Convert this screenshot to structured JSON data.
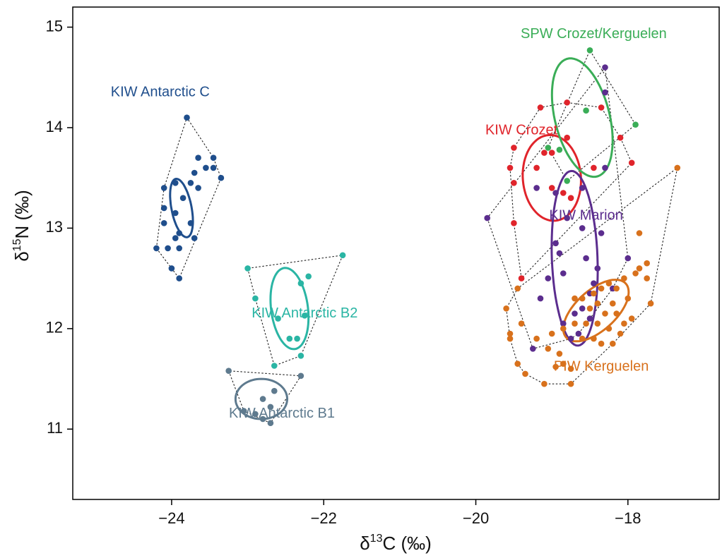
{
  "chart_data": {
    "type": "scatter",
    "title": "",
    "xlabel": "δ¹³C (‰)",
    "ylabel": "δ¹⁵N (‰)",
    "xlabel_parts": {
      "delta": "δ",
      "sup": "13",
      "rest": "C (‰)"
    },
    "ylabel_parts": {
      "delta": "δ",
      "sup": "15",
      "rest": "N (‰)"
    },
    "xlim": [
      -25.3,
      -16.8
    ],
    "ylim": [
      10.3,
      15.2
    ],
    "x_ticks": [
      -24,
      -22,
      -20,
      -18
    ],
    "x_tick_labels": [
      "−24",
      "−22",
      "−20",
      "−18"
    ],
    "y_ticks": [
      11,
      12,
      13,
      14,
      15
    ],
    "y_tick_labels": [
      "11",
      "12",
      "13",
      "14",
      "15"
    ],
    "grid": false,
    "legend": "none (direct labels)",
    "series": [
      {
        "name": "KIW Antarctic C",
        "color": "#1f4e8c",
        "label_anchor": [
          -24.15,
          14.35
        ],
        "points": [
          [
            -23.8,
            14.1
          ],
          [
            -23.65,
            13.7
          ],
          [
            -23.45,
            13.7
          ],
          [
            -23.55,
            13.6
          ],
          [
            -23.45,
            13.6
          ],
          [
            -23.7,
            13.55
          ],
          [
            -23.35,
            13.5
          ],
          [
            -23.95,
            13.45
          ],
          [
            -23.75,
            13.45
          ],
          [
            -24.1,
            13.4
          ],
          [
            -23.65,
            13.4
          ],
          [
            -23.85,
            13.3
          ],
          [
            -24.1,
            13.2
          ],
          [
            -23.95,
            13.15
          ],
          [
            -24.1,
            13.05
          ],
          [
            -23.75,
            13.05
          ],
          [
            -23.9,
            12.95
          ],
          [
            -23.95,
            12.9
          ],
          [
            -23.7,
            12.9
          ],
          [
            -24.2,
            12.8
          ],
          [
            -24.05,
            12.8
          ],
          [
            -23.9,
            12.8
          ],
          [
            -24.0,
            12.6
          ],
          [
            -23.9,
            12.5
          ]
        ],
        "ellipse": {
          "cx": -23.87,
          "cy": 13.2,
          "rx": 0.13,
          "ry": 0.3,
          "angle_deg": 16
        }
      },
      {
        "name": "KIW Antarctic B2",
        "color": "#2ab5a4",
        "label_anchor": [
          -22.25,
          12.15
        ],
        "points": [
          [
            -21.75,
            12.73
          ],
          [
            -23.0,
            12.6
          ],
          [
            -22.2,
            12.52
          ],
          [
            -22.3,
            12.45
          ],
          [
            -22.9,
            12.3
          ],
          [
            -22.25,
            12.13
          ],
          [
            -22.6,
            12.1
          ],
          [
            -22.45,
            11.9
          ],
          [
            -22.35,
            11.9
          ],
          [
            -22.3,
            11.73
          ],
          [
            -22.65,
            11.63
          ]
        ],
        "ellipse": {
          "cx": -22.45,
          "cy": 12.2,
          "rx": 0.24,
          "ry": 0.41,
          "angle_deg": 12
        }
      },
      {
        "name": "KIW Antarctic B1",
        "color": "#5e7a8e",
        "label_anchor": [
          -22.55,
          11.15
        ],
        "points": [
          [
            -23.25,
            11.58
          ],
          [
            -22.3,
            11.53
          ],
          [
            -22.65,
            11.38
          ],
          [
            -22.8,
            11.3
          ],
          [
            -22.7,
            11.22
          ],
          [
            -23.05,
            11.18
          ],
          [
            -22.9,
            11.15
          ],
          [
            -22.8,
            11.1
          ],
          [
            -22.7,
            11.06
          ]
        ],
        "ellipse": {
          "cx": -22.82,
          "cy": 11.3,
          "rx": 0.34,
          "ry": 0.2,
          "angle_deg": 0
        }
      },
      {
        "name": "KIW Crozet",
        "color": "#e0242b",
        "label_anchor": [
          -19.4,
          13.97
        ],
        "points": [
          [
            -18.8,
            14.25
          ],
          [
            -19.15,
            14.2
          ],
          [
            -18.35,
            14.2
          ],
          [
            -18.1,
            13.9
          ],
          [
            -18.8,
            13.9
          ],
          [
            -19.5,
            13.8
          ],
          [
            -19.1,
            13.75
          ],
          [
            -19.0,
            13.75
          ],
          [
            -19.55,
            13.6
          ],
          [
            -19.2,
            13.6
          ],
          [
            -18.45,
            13.6
          ],
          [
            -19.5,
            13.45
          ],
          [
            -19.0,
            13.4
          ],
          [
            -18.85,
            13.35
          ],
          [
            -18.75,
            13.3
          ],
          [
            -19.5,
            13.05
          ],
          [
            -19.4,
            12.5
          ],
          [
            -17.95,
            13.65
          ]
        ],
        "ellipse": {
          "cx": -19.0,
          "cy": 13.5,
          "rx": 0.38,
          "ry": 0.43,
          "angle_deg": 15
        }
      },
      {
        "name": "SPW Crozet/Kerguelen",
        "color": "#3aad57",
        "label_anchor": [
          -18.45,
          14.93
        ],
        "points": [
          [
            -18.5,
            14.77
          ],
          [
            -18.55,
            14.17
          ],
          [
            -17.9,
            14.03
          ],
          [
            -18.9,
            13.78
          ],
          [
            -19.05,
            13.8
          ],
          [
            -18.8,
            13.47
          ]
        ],
        "ellipse": {
          "cx": -18.6,
          "cy": 14.1,
          "rx": 0.35,
          "ry": 0.62,
          "angle_deg": 22
        }
      },
      {
        "name": "KIW Marion",
        "color": "#5b2d8e",
        "label_anchor": [
          -18.55,
          13.12
        ],
        "points": [
          [
            -18.3,
            14.6
          ],
          [
            -18.3,
            14.35
          ],
          [
            -18.3,
            13.6
          ],
          [
            -19.2,
            13.4
          ],
          [
            -18.95,
            13.35
          ],
          [
            -18.6,
            13.4
          ],
          [
            -19.85,
            13.1
          ],
          [
            -18.8,
            13.1
          ],
          [
            -18.6,
            13.0
          ],
          [
            -18.35,
            12.95
          ],
          [
            -18.95,
            12.85
          ],
          [
            -18.9,
            12.75
          ],
          [
            -18.55,
            12.7
          ],
          [
            -18.4,
            12.6
          ],
          [
            -18.0,
            12.7
          ],
          [
            -18.85,
            12.55
          ],
          [
            -19.05,
            12.5
          ],
          [
            -18.45,
            12.45
          ],
          [
            -18.2,
            12.4
          ],
          [
            -18.5,
            12.35
          ],
          [
            -19.15,
            12.3
          ],
          [
            -18.6,
            12.2
          ],
          [
            -18.7,
            12.15
          ],
          [
            -18.5,
            12.1
          ],
          [
            -18.85,
            12.05
          ],
          [
            -18.65,
            11.95
          ],
          [
            -19.25,
            11.8
          ],
          [
            -18.75,
            11.9
          ]
        ],
        "ellipse": {
          "cx": -18.7,
          "cy": 12.7,
          "rx": 0.3,
          "ry": 0.87,
          "angle_deg": 3
        }
      },
      {
        "name": "PIW Kerguelen",
        "color": "#d8711c",
        "label_anchor": [
          -18.35,
          11.62
        ],
        "points": [
          [
            -17.35,
            13.6
          ],
          [
            -17.85,
            12.95
          ],
          [
            -17.75,
            12.65
          ],
          [
            -17.85,
            12.6
          ],
          [
            -17.75,
            12.5
          ],
          [
            -17.9,
            12.55
          ],
          [
            -18.05,
            12.5
          ],
          [
            -18.15,
            12.4
          ],
          [
            -18.25,
            12.45
          ],
          [
            -18.35,
            12.4
          ],
          [
            -18.45,
            12.35
          ],
          [
            -18.6,
            12.3
          ],
          [
            -18.7,
            12.3
          ],
          [
            -18.4,
            12.25
          ],
          [
            -18.2,
            12.25
          ],
          [
            -18.0,
            12.3
          ],
          [
            -17.7,
            12.25
          ],
          [
            -18.5,
            12.2
          ],
          [
            -18.3,
            12.15
          ],
          [
            -18.15,
            12.15
          ],
          [
            -17.95,
            12.1
          ],
          [
            -18.55,
            12.05
          ],
          [
            -18.4,
            12.05
          ],
          [
            -18.25,
            12.0
          ],
          [
            -18.1,
            11.95
          ],
          [
            -18.7,
            12.05
          ],
          [
            -18.85,
            12.0
          ],
          [
            -19.0,
            11.95
          ],
          [
            -18.6,
            11.9
          ],
          [
            -18.45,
            11.9
          ],
          [
            -18.35,
            11.85
          ],
          [
            -18.2,
            11.85
          ],
          [
            -19.4,
            12.05
          ],
          [
            -19.6,
            12.2
          ],
          [
            -19.55,
            11.95
          ],
          [
            -19.55,
            11.9
          ],
          [
            -19.2,
            11.9
          ],
          [
            -19.05,
            11.8
          ],
          [
            -18.9,
            11.75
          ],
          [
            -18.85,
            11.65
          ],
          [
            -18.95,
            11.62
          ],
          [
            -18.75,
            11.6
          ],
          [
            -19.45,
            11.65
          ],
          [
            -19.35,
            11.55
          ],
          [
            -19.1,
            11.45
          ],
          [
            -18.75,
            11.45
          ],
          [
            -19.45,
            12.4
          ],
          [
            -18.05,
            12.05
          ]
        ],
        "ellipse": {
          "cx": -18.42,
          "cy": 12.18,
          "rx": 0.48,
          "ry": 0.22,
          "angle_deg": 30
        }
      }
    ]
  }
}
